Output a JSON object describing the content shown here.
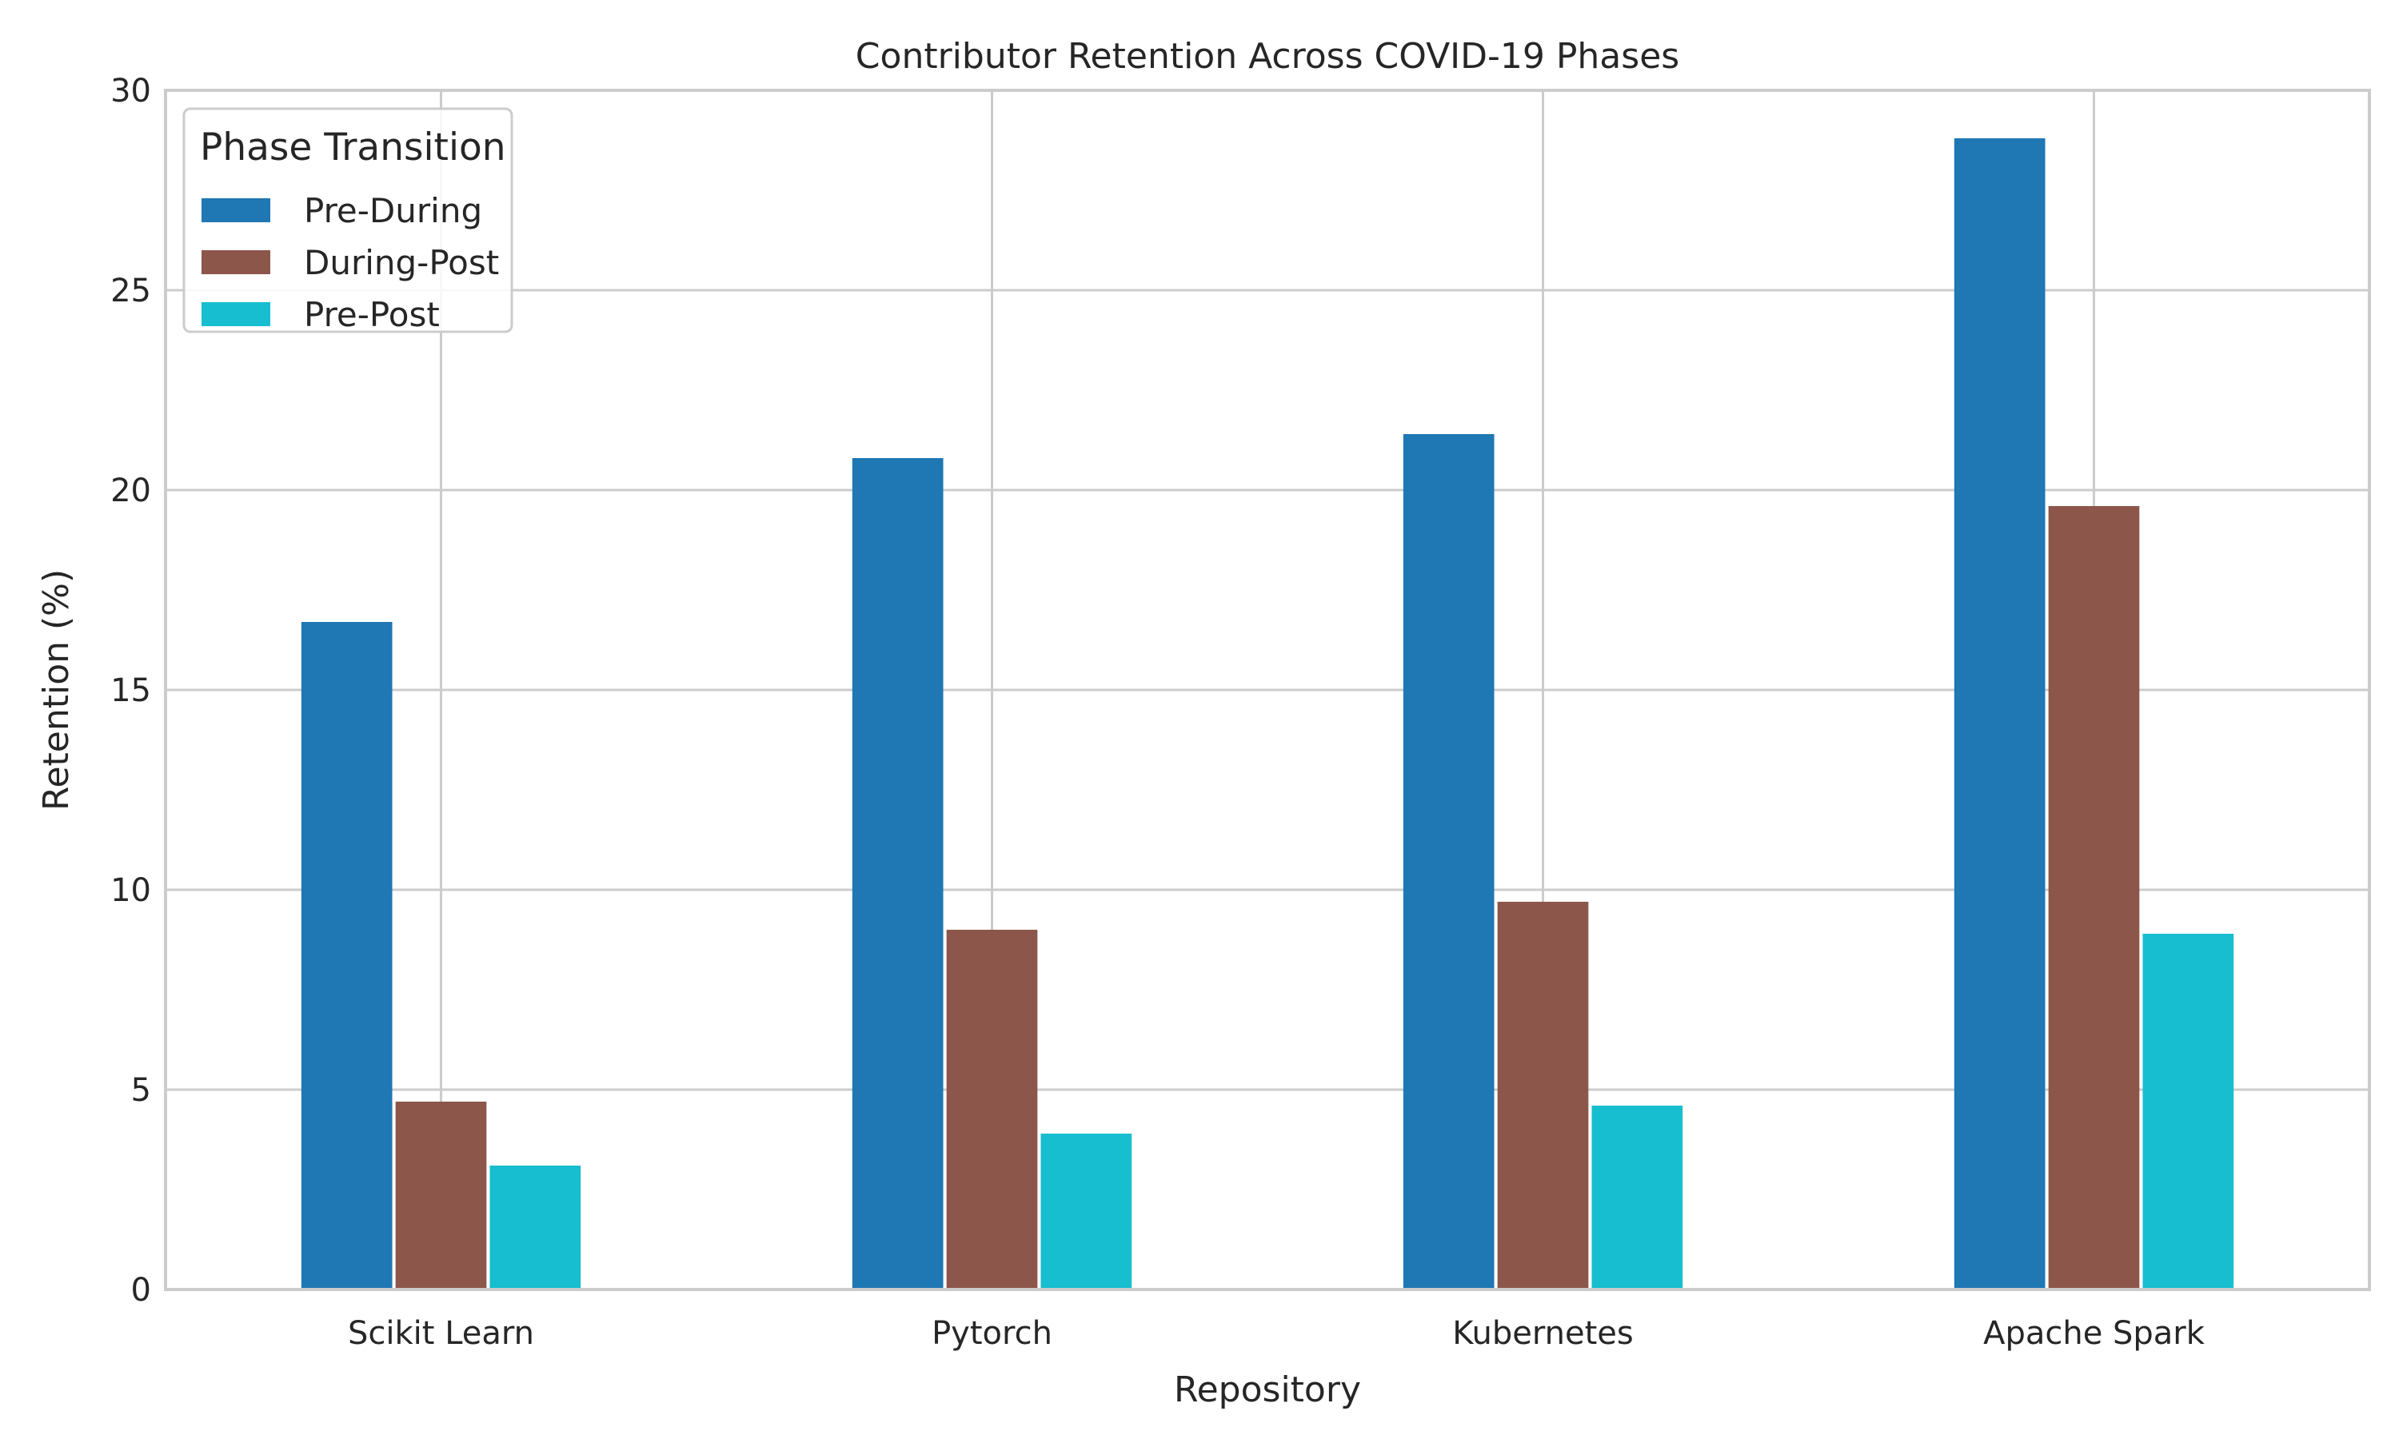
{
  "chart_data": {
    "type": "bar",
    "title": "Contributor Retention Across COVID-19 Phases",
    "xlabel": "Repository",
    "ylabel": "Retention (%)",
    "categories": [
      "Scikit Learn",
      "Pytorch",
      "Kubernetes",
      "Apache Spark"
    ],
    "series": [
      {
        "name": "Pre-During",
        "color": "#1f77b4",
        "values": [
          16.7,
          20.8,
          21.4,
          28.8
        ]
      },
      {
        "name": "During-Post",
        "color": "#8c564b",
        "values": [
          4.7,
          9.0,
          9.7,
          19.6
        ]
      },
      {
        "name": "Pre-Post",
        "color": "#17becf",
        "values": [
          3.1,
          3.9,
          4.6,
          8.9
        ]
      }
    ],
    "ylim": [
      0,
      30
    ],
    "yticks": [
      0,
      5,
      10,
      15,
      20,
      25,
      30
    ],
    "grid": true,
    "legend": {
      "title": "Phase Transition",
      "position": "top-left"
    }
  }
}
